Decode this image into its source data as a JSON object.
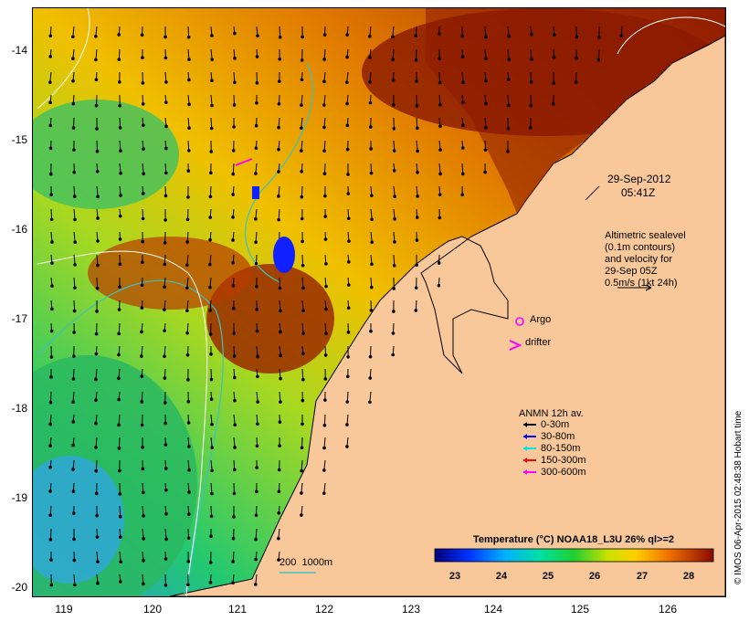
{
  "map": {
    "lon_ticks": [
      "119",
      "120",
      "121",
      "122",
      "123",
      "124",
      "125",
      "126"
    ],
    "lat_ticks": [
      "-14",
      "-15",
      "-16",
      "-17",
      "-18",
      "-19",
      "-20"
    ],
    "date_label": "29-Sep-2012",
    "time_label": "05:41Z",
    "altimetry_note": "Altimetric sealevel\n(0.1m contours)\nand velocity for\n29-Sep 05Z\n0.5m/s (1kt 24h)",
    "argo_label": "Argo",
    "drifter_label": "drifter",
    "depth_contour_label": "200  1000m",
    "credit": "© IMOS 06-Apr-2015 02:48:38 Hobart time"
  },
  "legend": {
    "title": "ANMN 12h av.",
    "items": [
      {
        "label": "0-30m",
        "color": "#000000"
      },
      {
        "label": "30-80m",
        "color": "#0000ff"
      },
      {
        "label": "80-150m",
        "color": "#00e5e5"
      },
      {
        "label": "150-300m",
        "color": "#ff0000"
      },
      {
        "label": "300-600m",
        "color": "#ff00ff"
      }
    ]
  },
  "colorbar": {
    "title": "Temperature (°C) NOAA18_L3U 26% ql>=2",
    "ticks": [
      "23",
      "24",
      "25",
      "26",
      "27",
      "28"
    ]
  },
  "colors": {
    "land": "#f8c89a",
    "argo": "#ff00ff",
    "drifter": "#ff00ff",
    "depth_contour": "#40c0c0",
    "sealevel_contour": "#ffffff"
  }
}
